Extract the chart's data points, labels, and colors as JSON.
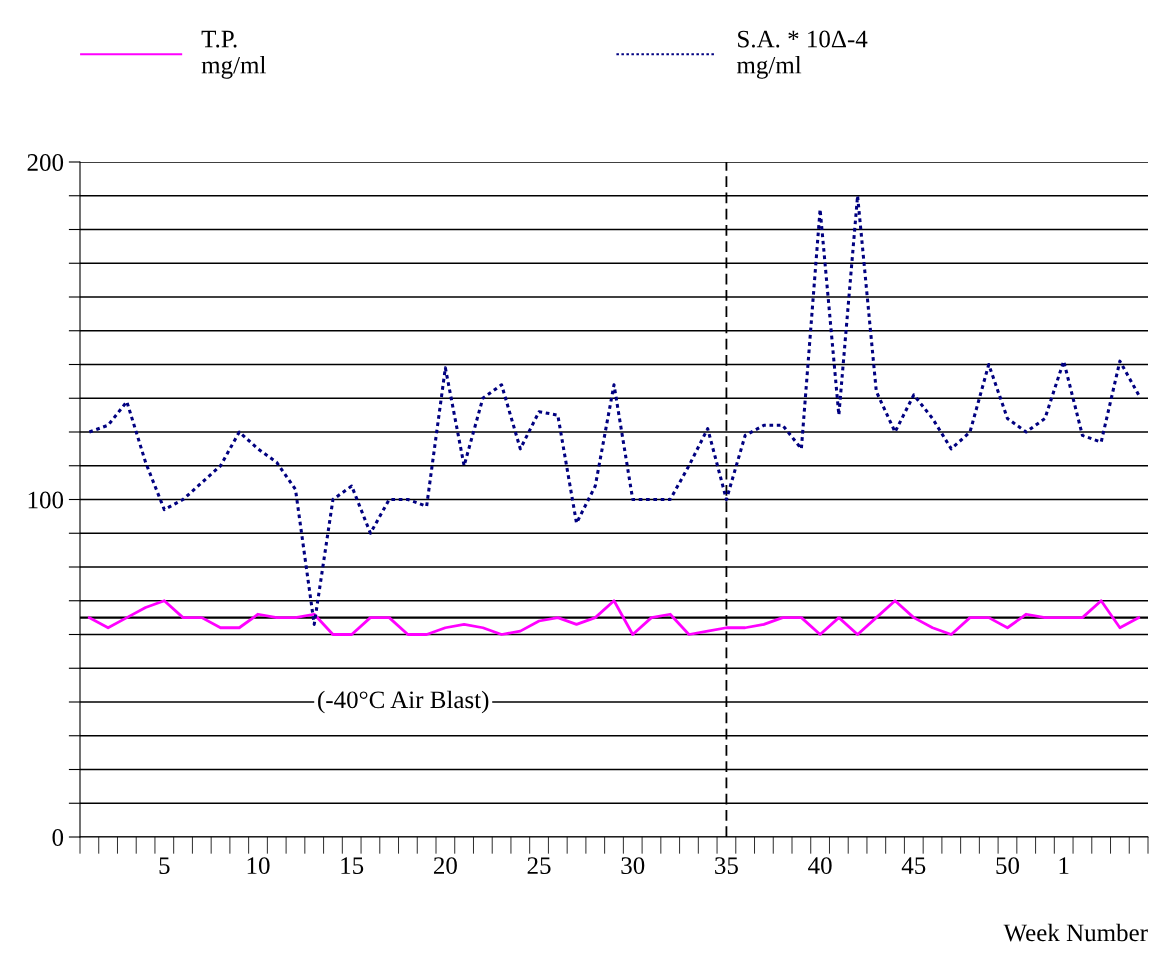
{
  "chart_data": {
    "type": "line",
    "xlabel": "Week Number",
    "categories": [
      null,
      null,
      null,
      null,
      "5",
      null,
      null,
      null,
      null,
      "10",
      null,
      null,
      null,
      null,
      "15",
      null,
      null,
      null,
      null,
      "20",
      null,
      null,
      null,
      null,
      "25",
      null,
      null,
      null,
      null,
      "30",
      null,
      null,
      null,
      null,
      "35",
      null,
      null,
      null,
      null,
      "40",
      null,
      null,
      null,
      null,
      "45",
      null,
      null,
      null,
      null,
      "50",
      null,
      null,
      "1",
      null,
      null,
      null,
      null
    ],
    "series": [
      {
        "name": "T.P.\nmg/ml",
        "color": "#ff00ff",
        "line_style": "solid",
        "values": [
          65,
          62,
          65,
          68,
          70,
          65,
          65,
          62,
          62,
          66,
          65,
          65,
          66,
          60,
          60,
          65,
          65,
          60,
          60,
          62,
          63,
          62,
          60,
          61,
          64,
          65,
          63,
          65,
          70,
          60,
          65,
          66,
          60,
          61,
          62,
          62,
          63,
          65,
          65,
          60,
          65,
          60,
          65,
          70,
          65,
          62,
          60,
          65,
          65,
          62,
          66,
          65,
          65,
          65,
          70,
          62,
          65
        ]
      },
      {
        "name": "S.A. * 10Δ-4\nmg/ml",
        "color": "#000080",
        "line_style": "dotted",
        "values": [
          120,
          122,
          129,
          111,
          97,
          100,
          105,
          110,
          120,
          115,
          111,
          103,
          63,
          100,
          104,
          90,
          100,
          100,
          98,
          139,
          110,
          130,
          134,
          115,
          126,
          125,
          93,
          104,
          134,
          100,
          100,
          100,
          110,
          121,
          100,
          119,
          122,
          122,
          115,
          186,
          125,
          190,
          132,
          120,
          131,
          124,
          115,
          120,
          140,
          124,
          120,
          124,
          141,
          119,
          117,
          141,
          131
        ]
      }
    ],
    "ylim": [
      0,
      200
    ],
    "yticks": [
      0,
      {
        "value": 10,
        "label": null
      },
      {
        "value": 20,
        "label": null
      },
      {
        "value": 30,
        "label": null
      },
      {
        "value": 40,
        "label": null
      },
      {
        "value": 50,
        "label": null
      },
      {
        "value": 60,
        "label": null
      },
      {
        "value": 70,
        "label": null
      },
      {
        "value": 80,
        "label": null
      },
      {
        "value": 90,
        "label": null
      },
      100,
      {
        "value": 110,
        "label": null
      },
      {
        "value": 120,
        "label": null
      },
      {
        "value": 130,
        "label": null
      },
      {
        "value": 140,
        "label": null
      },
      {
        "value": 150,
        "label": null
      },
      {
        "value": 160,
        "label": null
      },
      {
        "value": 170,
        "label": null
      },
      {
        "value": 180,
        "label": null
      },
      {
        "value": 190,
        "label": null
      },
      200
    ],
    "grid": "y",
    "legend": "top",
    "ref_lines": [
      {
        "axis": "x",
        "value": "35",
        "color": "#000000",
        "line_style": "dashed"
      },
      {
        "axis": "y",
        "value": 65,
        "color": "#000000",
        "line_style": "solid"
      }
    ],
    "annotations": [
      "(-40°C Air Blast)"
    ]
  }
}
